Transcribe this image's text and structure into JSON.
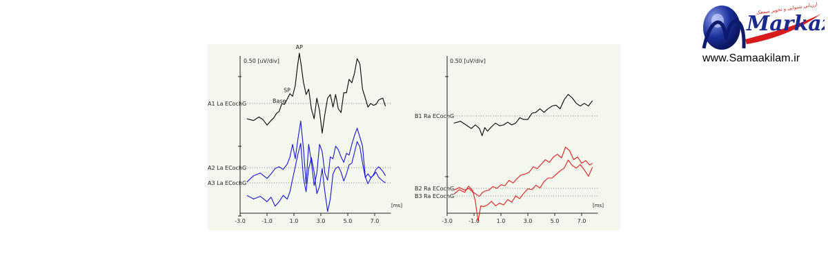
{
  "logo": {
    "wordmark": "Markazi",
    "tagline": "ارزیابی شنوایی و تجویز سمعک",
    "url": "www.Samaakilam.ir"
  },
  "chart_data": [
    {
      "type": "line",
      "panel": "left",
      "scale_label": "0.50 [uV/div]",
      "x_unit_label": "[ms]",
      "xlim": [
        -3.0,
        8.0
      ],
      "x_ticks": [
        "-3.0",
        "-1.0",
        "1.0",
        "3.0",
        "5.0",
        "7.0"
      ],
      "x_tick_values": [
        -3,
        -1,
        1,
        3,
        5,
        7
      ],
      "annotations": [
        {
          "label": "AP",
          "x": 1.4,
          "series": "A1 La ECochG"
        },
        {
          "label": "SP",
          "x": 0.8,
          "series": "A1 La ECochG"
        },
        {
          "label": "Base",
          "x": 0.1,
          "series": "A1 La ECochG"
        }
      ],
      "series": [
        {
          "name": "A1 La ECochG",
          "color": "#000000",
          "baseline": 0.0,
          "x": [
            -2.5,
            -2.0,
            -1.6,
            -1.3,
            -1.0,
            -0.7,
            -0.5,
            -0.3,
            -0.1,
            0.1,
            0.3,
            0.5,
            0.7,
            0.9,
            1.1,
            1.25,
            1.4,
            1.55,
            1.7,
            1.9,
            2.1,
            2.3,
            2.5,
            2.7,
            2.9,
            3.1,
            3.3,
            3.5,
            3.7,
            3.9,
            4.1,
            4.3,
            4.5,
            4.7,
            4.9,
            5.1,
            5.3,
            5.5,
            5.7,
            5.9,
            6.1,
            6.3,
            6.5,
            6.7,
            6.9,
            7.1,
            7.3,
            7.6,
            7.8
          ],
          "y": [
            -0.85,
            -0.95,
            -0.75,
            -0.9,
            -1.2,
            -0.95,
            -0.8,
            -0.55,
            -0.45,
            0.0,
            -0.05,
            0.25,
            0.55,
            0.4,
            1.0,
            2.0,
            2.8,
            2.1,
            1.2,
            0.5,
            0.8,
            -0.3,
            -0.85,
            0.3,
            -0.4,
            -1.65,
            -0.6,
            0.3,
            0.5,
            -0.2,
            0.5,
            -0.3,
            -0.5,
            0.6,
            0.6,
            1.35,
            1.15,
            1.7,
            2.5,
            2.2,
            0.8,
            0.3,
            -0.2,
            0.0,
            -0.1,
            -0.05,
            0.2,
            0.3,
            -0.15
          ]
        },
        {
          "name": "A2 La ECochG",
          "color": "#1414d2",
          "baseline": 0.0,
          "x": [
            -2.5,
            -2.0,
            -1.5,
            -1.0,
            -0.7,
            -0.4,
            -0.1,
            0.2,
            0.5,
            0.7,
            0.9,
            1.1,
            1.3,
            1.5,
            1.7,
            1.9,
            2.1,
            2.3,
            2.5,
            2.7,
            2.9,
            3.1,
            3.3,
            3.5,
            3.7,
            3.9,
            4.1,
            4.3,
            4.5,
            4.7,
            4.9,
            5.1,
            5.3,
            5.5,
            5.7,
            5.9,
            6.1,
            6.3,
            6.5,
            6.7,
            6.9,
            7.1,
            7.3,
            7.6,
            7.8
          ],
          "y": [
            -0.8,
            -0.45,
            -0.3,
            -0.6,
            -0.35,
            -0.05,
            0.05,
            -0.1,
            0.2,
            0.6,
            1.3,
            0.5,
            1.6,
            2.6,
            1.1,
            -0.9,
            1.3,
            0.3,
            -1.0,
            -0.3,
            1.3,
            0.9,
            -0.3,
            -0.7,
            0.6,
            0.5,
            1.2,
            1.0,
            0.6,
            0.3,
            0.8,
            0.7,
            1.3,
            1.8,
            2.2,
            1.7,
            1.2,
            -0.5,
            -0.9,
            -0.6,
            -0.4,
            -0.1,
            0.05,
            -0.2,
            -0.45
          ]
        },
        {
          "name": "A3 La ECochG",
          "color": "#1414d2",
          "baseline": 0.0,
          "x": [
            -2.5,
            -2.0,
            -1.5,
            -1.0,
            -0.7,
            -0.4,
            -0.1,
            0.2,
            0.5,
            0.7,
            0.9,
            1.1,
            1.3,
            1.5,
            1.7,
            1.9,
            2.1,
            2.3,
            2.5,
            2.7,
            2.9,
            3.1,
            3.3,
            3.5,
            3.7,
            3.9,
            4.1,
            4.3,
            4.5,
            4.7,
            4.9,
            5.1,
            5.3,
            5.5,
            5.7,
            5.9,
            6.1,
            6.3,
            6.5,
            6.7,
            6.9,
            7.1,
            7.3,
            7.6,
            7.8
          ],
          "y": [
            -0.7,
            -0.9,
            -0.75,
            -1.05,
            -0.8,
            -1.3,
            -1.05,
            -0.7,
            -0.9,
            -0.5,
            0.2,
            0.9,
            1.6,
            2.2,
            0.3,
            -0.5,
            0.8,
            1.4,
            0.6,
            -0.6,
            -0.2,
            0.8,
            -0.5,
            -1.6,
            -0.9,
            0.5,
            0.8,
            0.9,
            0.6,
            0.1,
            0.5,
            1.0,
            1.1,
            1.7,
            2.3,
            2.0,
            1.1,
            0.3,
            0.5,
            0.3,
            0.4,
            0.6,
            0.3,
            0.1,
            0.0
          ]
        }
      ]
    },
    {
      "type": "line",
      "panel": "right",
      "scale_label": "0.50 [uV/div]",
      "x_unit_label": "[ms]",
      "xlim": [
        -3.0,
        8.0
      ],
      "x_ticks": [
        "-3.0",
        "-1.0",
        "1.0",
        "3.0",
        "5.0",
        "7.0"
      ],
      "x_tick_values": [
        -3,
        -1,
        1,
        3,
        5,
        7
      ],
      "series": [
        {
          "name": "B1 Ra ECochG",
          "color": "#000000",
          "baseline": 0.0,
          "x": [
            -2.5,
            -2.0,
            -1.6,
            -1.2,
            -0.9,
            -0.6,
            -0.4,
            -0.2,
            0.0,
            0.3,
            0.6,
            0.9,
            1.2,
            1.5,
            1.8,
            2.1,
            2.4,
            2.7,
            3.0,
            3.3,
            3.6,
            3.9,
            4.2,
            4.5,
            4.8,
            5.1,
            5.4,
            5.7,
            6.0,
            6.3,
            6.6,
            6.9,
            7.2,
            7.5,
            7.8
          ],
          "y": [
            -0.4,
            -0.3,
            -0.5,
            -0.7,
            -0.5,
            -0.7,
            -1.1,
            -0.65,
            -0.85,
            -0.6,
            -0.4,
            -0.55,
            -0.5,
            -0.35,
            -0.5,
            -0.4,
            -0.1,
            -0.2,
            -0.2,
            0.15,
            0.2,
            0.4,
            0.2,
            0.4,
            0.55,
            0.6,
            0.4,
            0.9,
            1.2,
            1.0,
            0.7,
            0.55,
            0.7,
            0.55,
            0.85
          ]
        },
        {
          "name": "B2 Ra ECochG",
          "color": "#e01a1a",
          "baseline": 0.0,
          "x": [
            -2.5,
            -2.1,
            -1.7,
            -1.4,
            -1.1,
            -0.8,
            -0.6,
            -0.4,
            -0.2,
            0.1,
            0.4,
            0.7,
            1.0,
            1.3,
            1.6,
            1.9,
            2.2,
            2.5,
            2.8,
            3.1,
            3.4,
            3.7,
            4.0,
            4.3,
            4.6,
            4.9,
            5.2,
            5.5,
            5.8,
            6.1,
            6.4,
            6.7,
            7.0,
            7.3,
            7.6,
            7.8
          ],
          "y": [
            -0.1,
            0.05,
            -0.1,
            0.0,
            -0.2,
            -0.35,
            -0.45,
            -0.25,
            -0.15,
            -0.1,
            0.1,
            0.0,
            0.2,
            0.15,
            0.45,
            0.3,
            0.55,
            0.75,
            0.8,
            0.9,
            1.2,
            1.1,
            1.35,
            1.6,
            1.45,
            1.75,
            1.9,
            1.7,
            2.3,
            2.1,
            1.6,
            1.75,
            1.4,
            1.55,
            1.3,
            1.4
          ]
        },
        {
          "name": "B3 Ra ECochG",
          "color": "#e01a1a",
          "baseline": 0.0,
          "x": [
            -2.5,
            -2.1,
            -1.7,
            -1.4,
            -1.1,
            -0.9,
            -0.7,
            -0.5,
            -0.3,
            0.0,
            0.3,
            0.6,
            0.9,
            1.2,
            1.5,
            1.8,
            2.1,
            2.4,
            2.7,
            3.0,
            3.3,
            3.6,
            3.9,
            4.2,
            4.5,
            4.8,
            5.1,
            5.4,
            5.7,
            6.0,
            6.3,
            6.6,
            6.9,
            7.2,
            7.5,
            7.8
          ],
          "y": [
            0.1,
            0.35,
            0.2,
            0.55,
            0.3,
            -0.3,
            -1.4,
            -0.55,
            -0.6,
            -0.5,
            -0.3,
            -0.55,
            -0.4,
            -0.5,
            -0.2,
            -0.35,
            0.0,
            -0.15,
            0.15,
            0.4,
            0.35,
            0.6,
            0.45,
            0.8,
            1.0,
            1.0,
            1.2,
            1.4,
            1.55,
            2.0,
            1.7,
            1.55,
            1.75,
            1.45,
            1.1,
            1.6
          ]
        }
      ]
    }
  ]
}
